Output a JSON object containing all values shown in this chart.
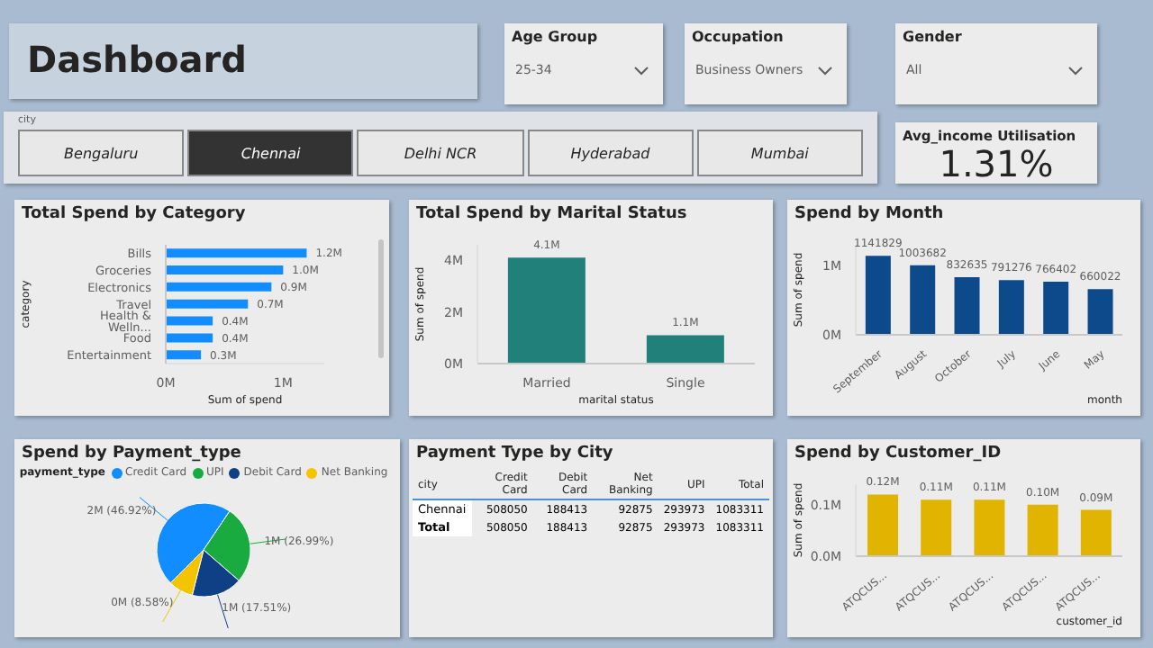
{
  "chart_data": [
    {
      "type": "other",
      "title": "Dashboard"
    },
    {
      "type": "other",
      "title": "Age Group",
      "annotations": [
        "25-34"
      ]
    },
    {
      "type": "other",
      "title": "Occupation",
      "annotations": [
        "Business Owners"
      ]
    },
    {
      "type": "other",
      "title": "Gender",
      "annotations": [
        "All"
      ]
    },
    {
      "type": "other",
      "title": "city",
      "annotations": [
        "Bengaluru",
        "Chennai",
        "Delhi NCR",
        "Hyderabad",
        "Mumbai"
      ],
      "colors": [
        "#e8e8e8",
        "#333333",
        "#e8e8e8",
        "#e8e8e8",
        "#e8e8e8"
      ]
    },
    {
      "type": "other",
      "title": "Avg_income Utilisation",
      "annotations": [
        "1.31%"
      ]
    },
    {
      "type": "bar",
      "orientation": "horizontal",
      "title": "Total Spend by Category",
      "xlabel": "Sum of spend",
      "ylabel": "category",
      "categories": [
        "Bills",
        "Groceries",
        "Electronics",
        "Travel",
        "Health & Welln...",
        "Food",
        "Entertainment"
      ],
      "values": [
        1.2,
        1.0,
        0.9,
        0.7,
        0.4,
        0.4,
        0.3
      ],
      "value_labels": [
        "1.2M",
        "1.0M",
        "0.9M",
        "0.7M",
        "0.4M",
        "0.4M",
        "0.3M"
      ],
      "color": "#118dff",
      "xlim": [
        0,
        1.35
      ],
      "xticks": [
        {
          "value": 0,
          "label": "0M"
        },
        {
          "value": 1,
          "label": "1M"
        }
      ]
    },
    {
      "type": "bar",
      "title": "Total Spend by Marital Status",
      "xlabel": "marital status",
      "ylabel": "Sum of spend",
      "categories": [
        "Married",
        "Single"
      ],
      "values": [
        4.1,
        1.1
      ],
      "value_labels": [
        "4.1M",
        "1.1M"
      ],
      "color": "#21807a",
      "ylim": [
        0,
        4.6
      ],
      "yticks": [
        {
          "value": 0,
          "label": "0M"
        },
        {
          "value": 2,
          "label": "2M"
        },
        {
          "value": 4,
          "label": "4M"
        }
      ]
    },
    {
      "type": "bar",
      "title": "Spend by Month",
      "xlabel": "month",
      "ylabel": "Sum of spend",
      "categories": [
        "September",
        "August",
        "October",
        "July",
        "June",
        "May"
      ],
      "values": [
        1141829,
        1003682,
        832635,
        791276,
        766402,
        660022
      ],
      "data_labels": true,
      "color": "#0d4a8c",
      "ylim": [
        0,
        1300000
      ],
      "yticks": [
        {
          "value": 0,
          "label": "0M"
        },
        {
          "value": 1000000,
          "label": "1M"
        }
      ]
    },
    {
      "type": "pie",
      "title": "Spend by Payment_type",
      "legend_title": "payment_type",
      "legend": "top",
      "categories": [
        "Credit Card",
        "UPI",
        "Debit Card",
        "Net Banking"
      ],
      "values": [
        46.92,
        26.99,
        17.51,
        8.58
      ],
      "value_labels": [
        "2M (46.92%)",
        "1M (26.99%)",
        "1M (17.51%)",
        "0M (8.58%)"
      ],
      "colors": [
        "#118dff",
        "#1aab40",
        "#0f3f85",
        "#f5c400"
      ]
    },
    {
      "type": "heatmap",
      "data_labels": true,
      "title": "Payment Type by City",
      "ylabel": "city",
      "categories": [
        "Credit Card",
        "Debit Card",
        "Net Banking",
        "UPI",
        "Total"
      ],
      "y_categories": [
        "Chennai",
        "Total"
      ],
      "cells": [
        [
          508050,
          188413,
          92875,
          293973,
          1083311
        ],
        [
          508050,
          188413,
          92875,
          293973,
          1083311
        ]
      ]
    },
    {
      "type": "bar",
      "title": "Spend by Customer_ID",
      "xlabel": "customer_id",
      "ylabel": "Sum of spend",
      "categories": [
        "ATQCUS...",
        "ATQCUS...",
        "ATQCUS...",
        "ATQCUS...",
        "ATQCUS..."
      ],
      "values": [
        0.12,
        0.11,
        0.11,
        0.1,
        0.09
      ],
      "value_labels": [
        "0.12M",
        "0.11M",
        "0.11M",
        "0.10M",
        "0.09M"
      ],
      "color": "#e0b400",
      "ylim": [
        0,
        0.14
      ],
      "yticks": [
        {
          "value": 0,
          "label": "0.0M"
        },
        {
          "value": 0.1,
          "label": "0.1M"
        }
      ]
    }
  ]
}
